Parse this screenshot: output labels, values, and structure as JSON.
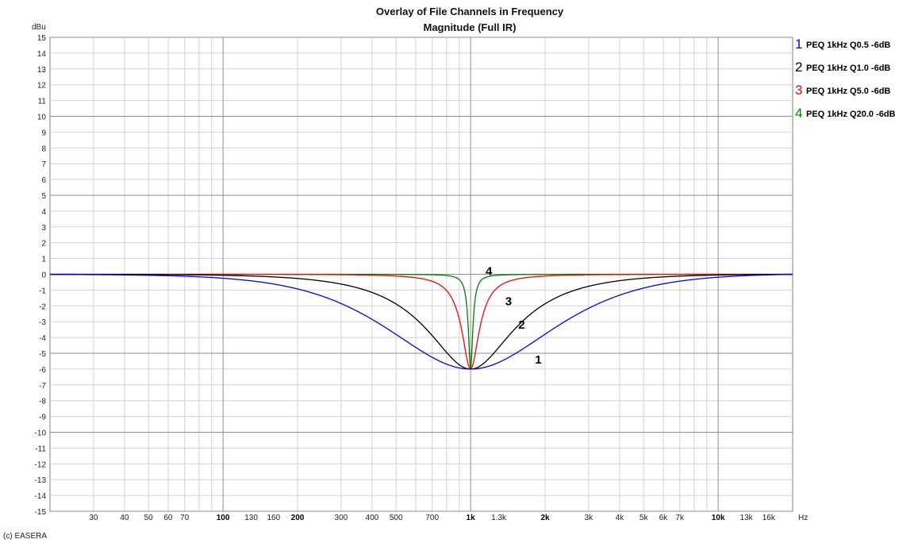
{
  "chart_data": {
    "type": "line",
    "title": "Overlay of File Channels in Frequency",
    "subtitle": "Magnitude (Full IR)",
    "ylabel": "dBu",
    "xlabel": "Hz",
    "x_scale": "log",
    "xlim": [
      20,
      20000
    ],
    "ylim": [
      -15,
      15
    ],
    "grid": true,
    "legend_position": "right",
    "y_ticks": [
      15,
      14,
      13,
      12,
      11,
      10,
      9,
      8,
      7,
      6,
      5,
      4,
      3,
      2,
      1,
      0,
      -1,
      -2,
      -3,
      -4,
      -5,
      -6,
      -7,
      -8,
      -9,
      -10,
      -11,
      -12,
      -13,
      -14,
      -15
    ],
    "x_ticks": [
      {
        "value": 30,
        "label": "30",
        "bold": false
      },
      {
        "value": 40,
        "label": "40",
        "bold": false
      },
      {
        "value": 50,
        "label": "50",
        "bold": false
      },
      {
        "value": 60,
        "label": "60",
        "bold": false
      },
      {
        "value": 70,
        "label": "70",
        "bold": false
      },
      {
        "value": 100,
        "label": "100",
        "bold": true
      },
      {
        "value": 130,
        "label": "130",
        "bold": false
      },
      {
        "value": 160,
        "label": "160",
        "bold": false
      },
      {
        "value": 200,
        "label": "200",
        "bold": true
      },
      {
        "value": 300,
        "label": "300",
        "bold": false
      },
      {
        "value": 400,
        "label": "400",
        "bold": false
      },
      {
        "value": 500,
        "label": "500",
        "bold": false
      },
      {
        "value": 700,
        "label": "700",
        "bold": false
      },
      {
        "value": 1000,
        "label": "1k",
        "bold": true
      },
      {
        "value": 1300,
        "label": "1.3k",
        "bold": false
      },
      {
        "value": 2000,
        "label": "2k",
        "bold": true
      },
      {
        "value": 3000,
        "label": "3k",
        "bold": false
      },
      {
        "value": 4000,
        "label": "4k",
        "bold": false
      },
      {
        "value": 5000,
        "label": "5k",
        "bold": false
      },
      {
        "value": 6000,
        "label": "6k",
        "bold": false
      },
      {
        "value": 7000,
        "label": "7k",
        "bold": false
      },
      {
        "value": 10000,
        "label": "10k",
        "bold": true
      },
      {
        "value": 13000,
        "label": "13k",
        "bold": false
      },
      {
        "value": 16000,
        "label": "16k",
        "bold": false
      }
    ],
    "series": [
      {
        "name": "PEQ 1kHz Q0.5 -6dB",
        "number": "1",
        "color": "#0000ff",
        "fc": 1000,
        "q": 0.5,
        "gain_db": -6,
        "annotation": {
          "x": 1820,
          "y": -5.4
        }
      },
      {
        "name": "PEQ 1kHz Q1.0 -6dB",
        "number": "2",
        "color": "#000000",
        "fc": 1000,
        "q": 1.0,
        "gain_db": -6,
        "annotation": {
          "x": 1560,
          "y": -3.2
        }
      },
      {
        "name": "PEQ 1kHz Q5.0 -6dB",
        "number": "3",
        "color": "#ff0000",
        "fc": 1000,
        "q": 5.0,
        "gain_db": -6,
        "annotation": {
          "x": 1380,
          "y": -1.7
        }
      },
      {
        "name": "PEQ 1kHz Q20.0 -6dB",
        "number": "4",
        "color": "#008000",
        "fc": 1000,
        "q": 20.0,
        "gain_db": -6,
        "annotation": {
          "x": 1150,
          "y": 0.2
        }
      }
    ]
  },
  "footer": {
    "copyright": "(c) EASERA"
  }
}
